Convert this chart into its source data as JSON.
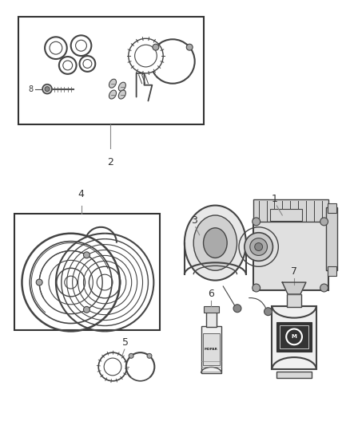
{
  "background_color": "#ffffff",
  "fig_width": 4.38,
  "fig_height": 5.33,
  "dpi": 100
}
